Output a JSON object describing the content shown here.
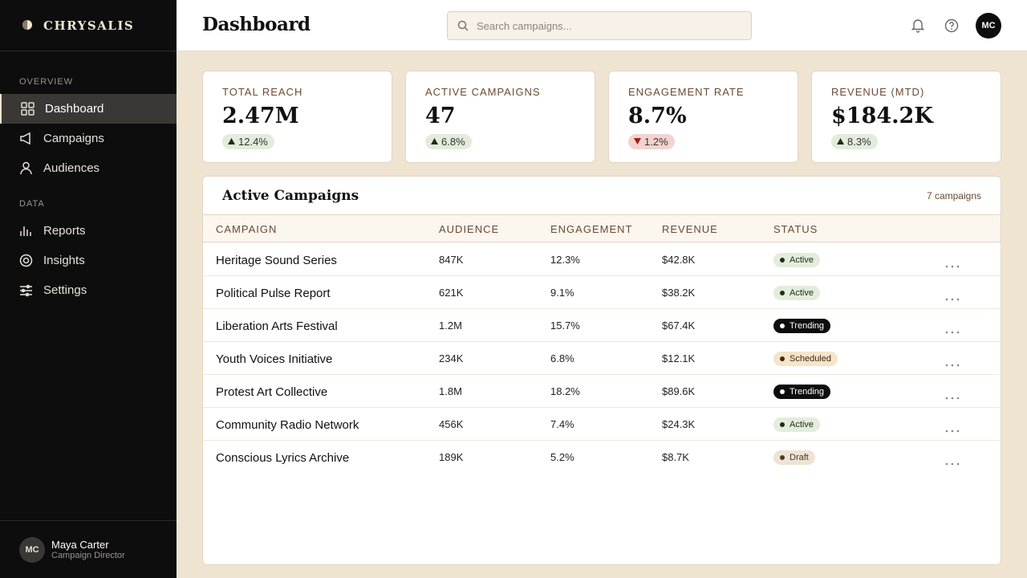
{
  "sidebar": {
    "brand": "CHRYSALIS",
    "sections": [
      {
        "label": "OVERVIEW",
        "items": [
          {
            "label": "Dashboard",
            "active": true
          },
          {
            "label": "Campaigns"
          },
          {
            "label": "Audiences"
          }
        ]
      },
      {
        "label": "DATA",
        "items": [
          {
            "label": "Reports"
          },
          {
            "label": "Insights"
          },
          {
            "label": "Settings"
          }
        ]
      }
    ],
    "user": {
      "initials": "MC",
      "name": "Maya Carter",
      "role": "Campaign Director"
    }
  },
  "header": {
    "title": "Dashboard",
    "search_placeholder": "Search campaigns...",
    "avatar": "MC"
  },
  "stats": [
    {
      "label": "TOTAL REACH",
      "value": "2.47M",
      "change": "12.4%",
      "direction": "up"
    },
    {
      "label": "ACTIVE CAMPAIGNS",
      "value": "47",
      "change": "6.8%",
      "direction": "up"
    },
    {
      "label": "ENGAGEMENT RATE",
      "value": "8.7%",
      "change": "1.2%",
      "direction": "down"
    },
    {
      "label": "REVENUE (MTD)",
      "value": "$184.2K",
      "change": "8.3%",
      "direction": "up"
    }
  ],
  "table": {
    "title": "Active Campaigns",
    "count": "7 campaigns",
    "columns": [
      "CAMPAIGN",
      "AUDIENCE",
      "ENGAGEMENT",
      "REVENUE",
      "STATUS"
    ],
    "rows": [
      [
        "Heritage Sound Series",
        "847K",
        "12.3%",
        "$42.8K",
        "Active"
      ],
      [
        "Political Pulse Report",
        "621K",
        "9.1%",
        "$38.2K",
        "Active"
      ],
      [
        "Liberation Arts Festival",
        "1.2M",
        "15.7%",
        "$67.4K",
        "Trending"
      ],
      [
        "Youth Voices Initiative",
        "234K",
        "6.8%",
        "$12.1K",
        "Scheduled"
      ],
      [
        "Protest Art Collective",
        "1.8M",
        "18.2%",
        "$89.6K",
        "Trending"
      ],
      [
        "Community Radio Network",
        "456K",
        "7.4%",
        "$24.3K",
        "Active"
      ],
      [
        "Conscious Lyrics Archive",
        "189K",
        "5.2%",
        "$8.7K",
        "Draft"
      ]
    ]
  }
}
